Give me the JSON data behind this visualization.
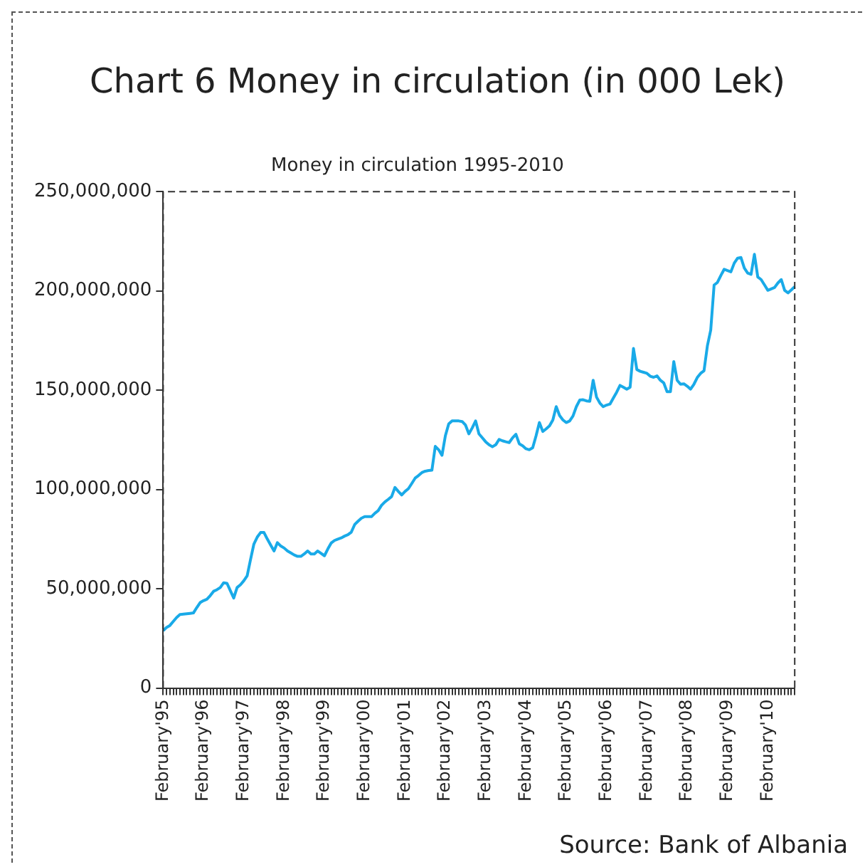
{
  "chart_data": {
    "type": "line",
    "title": "Chart 6 Money in circulation (in 000 Lek)",
    "subtitle": "Money in circulation 1995-2010",
    "annotations": [
      "Source: Bank of Albania"
    ],
    "categories": [
      "February'95",
      null,
      null,
      null,
      null,
      null,
      null,
      null,
      null,
      null,
      null,
      null,
      "February'96",
      null,
      null,
      null,
      null,
      null,
      null,
      null,
      null,
      null,
      null,
      null,
      "February'97",
      null,
      null,
      null,
      null,
      null,
      null,
      null,
      null,
      null,
      null,
      null,
      "February'98",
      null,
      null,
      null,
      null,
      null,
      null,
      null,
      null,
      null,
      null,
      null,
      "February'99",
      null,
      null,
      null,
      null,
      null,
      null,
      null,
      null,
      null,
      null,
      null,
      "February'00",
      null,
      null,
      null,
      null,
      null,
      null,
      null,
      null,
      null,
      null,
      null,
      "February'01",
      null,
      null,
      null,
      null,
      null,
      null,
      null,
      null,
      null,
      null,
      null,
      "February'02",
      null,
      null,
      null,
      null,
      null,
      null,
      null,
      null,
      null,
      null,
      null,
      "February'03",
      null,
      null,
      null,
      null,
      null,
      null,
      null,
      null,
      null,
      null,
      null,
      "February'04",
      null,
      null,
      null,
      null,
      null,
      null,
      null,
      null,
      null,
      null,
      null,
      "February'05",
      null,
      null,
      null,
      null,
      null,
      null,
      null,
      null,
      null,
      null,
      null,
      "February'06",
      null,
      null,
      null,
      null,
      null,
      null,
      null,
      null,
      null,
      null,
      null,
      "February'07",
      null,
      null,
      null,
      null,
      null,
      null,
      null,
      null,
      null,
      null,
      null,
      "February'08",
      null,
      null,
      null,
      null,
      null,
      null,
      null,
      null,
      null,
      null,
      null,
      "February'09",
      null,
      null,
      null,
      null,
      null,
      null,
      null,
      null,
      null,
      null,
      null,
      "February'10",
      null,
      null,
      null,
      null,
      null,
      null,
      null,
      null
    ],
    "series": [
      {
        "color": "#19aae8",
        "values": [
          28800000,
          30500000,
          31500000,
          33500000,
          35500000,
          37000000,
          37200000,
          37400000,
          37600000,
          37800000,
          40500000,
          43000000,
          44000000,
          44700000,
          46500000,
          48700000,
          49500000,
          50600000,
          53000000,
          52700000,
          49000000,
          45300000,
          50600000,
          52000000,
          54000000,
          56500000,
          64700000,
          72500000,
          76000000,
          78300000,
          78300000,
          75000000,
          72000000,
          69000000,
          73200000,
          71500000,
          70500000,
          69000000,
          68000000,
          67000000,
          66300000,
          66300000,
          67500000,
          69000000,
          67500000,
          67500000,
          69000000,
          67800000,
          66600000,
          70000000,
          73000000,
          74300000,
          75000000,
          75600000,
          76500000,
          77200000,
          78500000,
          82300000,
          84000000,
          85500000,
          86300000,
          86300000,
          86300000,
          88000000,
          89300000,
          92000000,
          93700000,
          95000000,
          96400000,
          101000000,
          99000000,
          97200000,
          99000000,
          100400000,
          103000000,
          105700000,
          107000000,
          108500000,
          109200000,
          109500000,
          109700000,
          121700000,
          120000000,
          117200000,
          127000000,
          133000000,
          134500000,
          134500000,
          134500000,
          134200000,
          132400000,
          128000000,
          131000000,
          134500000,
          128000000,
          126000000,
          124000000,
          122500000,
          121500000,
          122500000,
          125200000,
          124500000,
          124000000,
          123600000,
          126000000,
          127800000,
          123000000,
          122000000,
          120500000,
          120000000,
          121000000,
          127000000,
          133700000,
          129200000,
          130500000,
          132000000,
          135000000,
          141700000,
          137200000,
          135000000,
          133700000,
          134500000,
          137000000,
          141700000,
          145000000,
          145200000,
          144600000,
          144400000,
          155000000,
          146500000,
          143500000,
          141700000,
          142500000,
          143000000,
          146000000,
          149000000,
          152400000,
          151500000,
          150500000,
          151500000,
          171000000,
          160400000,
          159500000,
          159000000,
          158500000,
          157000000,
          156500000,
          157200000,
          155000000,
          153700000,
          149200000,
          149200000,
          164400000,
          155000000,
          153000000,
          153200000,
          152000000,
          150500000,
          153000000,
          156400000,
          158500000,
          159800000,
          172300000,
          180300000,
          202900000,
          204300000,
          207700000,
          210900000,
          210200000,
          209600000,
          214000000,
          216500000,
          216800000,
          211500000,
          209000000,
          208300000,
          218400000,
          207000000,
          205700000,
          203000000,
          200300000,
          201000000,
          201700000,
          204000000,
          205700000,
          200300000,
          199000000,
          200500000,
          202100000
        ]
      }
    ],
    "ylim": [
      0,
      250000000
    ],
    "yticks": [
      0,
      {
        "value": 50000000,
        "label": "50,000,000"
      },
      {
        "value": 100000000,
        "label": "100,000,000"
      },
      {
        "value": 150000000,
        "label": "150,000,000"
      },
      {
        "value": 200000000,
        "label": "200,000,000"
      },
      {
        "value": 250000000,
        "label": "250,000,000"
      }
    ],
    "grid": false,
    "legend": false,
    "marker": "none",
    "line_style": "solid"
  }
}
